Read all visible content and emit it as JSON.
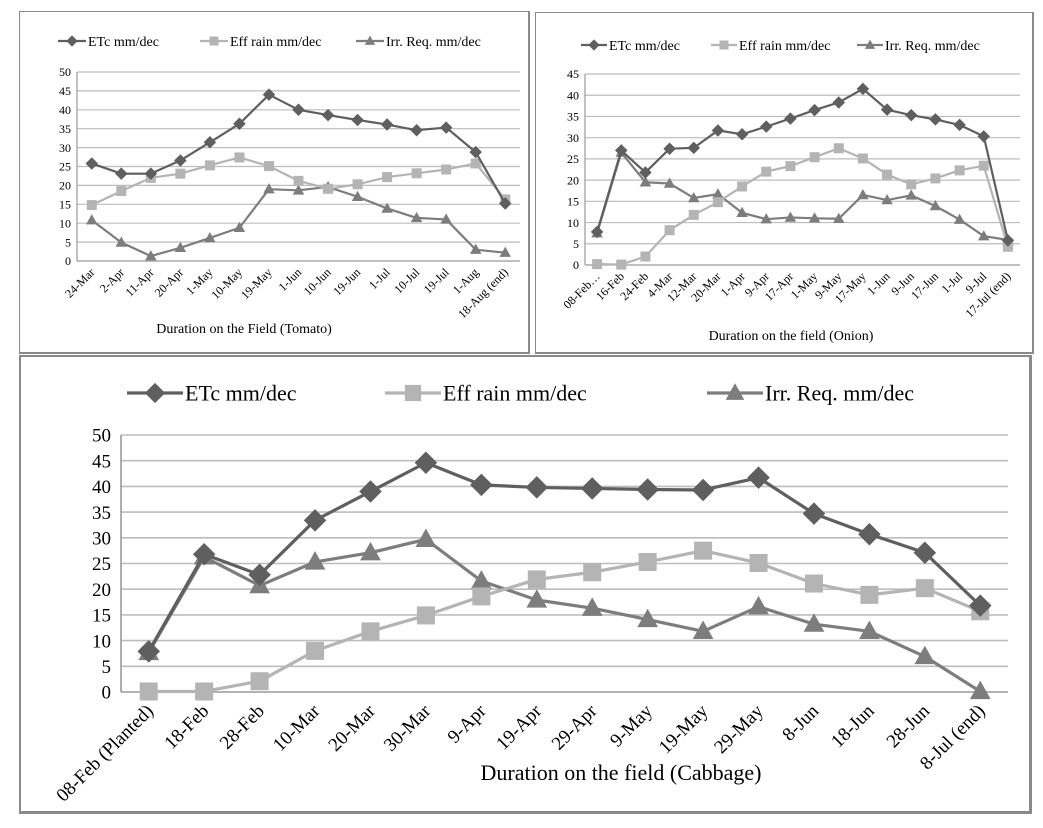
{
  "colors": {
    "etc": "#5f5f5f",
    "eff_rain": "#b4b4b4",
    "irr_req": "#7d7d7d",
    "grid": "#bdbdbd",
    "axis": "#9a9a9a"
  },
  "chart_data": [
    {
      "id": "tomato",
      "type": "line",
      "title": "",
      "xlabel": "Duration on the Field (Tomato)",
      "ylabel": "",
      "ylim": [
        0,
        50
      ],
      "ytick_step": 5,
      "grid": true,
      "legend_position": "top",
      "categories": [
        "24-Mar",
        "2-Apr",
        "11-Apr",
        "20-Apr",
        "1-May",
        "10-May",
        "19-May",
        "1-Jun",
        "10-Jun",
        "19-Jun",
        "1-Jul",
        "10-Jul",
        "19-Jul",
        "1-Aug",
        "18-Aug (end)"
      ],
      "series": [
        {
          "name": "ETc mm/dec",
          "marker": "diamond",
          "values": [
            25.8,
            23.1,
            23.1,
            26.6,
            31.4,
            36.3,
            44.0,
            40.0,
            38.6,
            37.3,
            36.1,
            34.6,
            35.3,
            28.8,
            15.2
          ]
        },
        {
          "name": "Eff rain mm/dec",
          "marker": "square",
          "values": [
            14.8,
            18.5,
            22.0,
            23.1,
            25.3,
            27.4,
            25.1,
            21.2,
            19.1,
            20.3,
            22.2,
            23.2,
            24.2,
            25.8,
            16.3
          ]
        },
        {
          "name": "Irr. Req. mm/dec",
          "marker": "triangle",
          "values": [
            10.8,
            4.9,
            1.3,
            3.5,
            6.1,
            8.8,
            19.0,
            18.7,
            19.6,
            17.0,
            13.9,
            11.4,
            11.0,
            3.0,
            2.2
          ]
        }
      ]
    },
    {
      "id": "onion",
      "type": "line",
      "title": "",
      "xlabel": "Duration on the field (Onion)",
      "ylabel": "",
      "ylim": [
        0,
        45
      ],
      "ytick_step": 5,
      "grid": true,
      "legend_position": "top",
      "categories": [
        "08-Feb…",
        "16-Feb",
        "24-Feb",
        "4-Mar",
        "12-Mar",
        "20-Mar",
        "1-Apr",
        "9-Apr",
        "17-Apr",
        "1-May",
        "9-May",
        "17-May",
        "1-Jun",
        "9-Jun",
        "17-Jun",
        "1-Jul",
        "9-Jul",
        "17-Jul (end)"
      ],
      "series": [
        {
          "name": "ETc mm/dec",
          "marker": "diamond",
          "values": [
            7.8,
            27.0,
            21.8,
            27.4,
            27.6,
            31.7,
            30.8,
            32.6,
            34.5,
            36.5,
            38.3,
            41.5,
            36.6,
            35.3,
            34.3,
            33.0,
            30.3,
            5.8
          ]
        },
        {
          "name": "Eff rain mm/dec",
          "marker": "square",
          "values": [
            0.2,
            0.1,
            2.0,
            8.2,
            11.8,
            14.8,
            18.5,
            22.0,
            23.3,
            25.4,
            27.5,
            25.1,
            21.3,
            19.0,
            20.4,
            22.3,
            23.4,
            4.3
          ]
        },
        {
          "name": "Irr. Req. mm/dec",
          "marker": "triangle",
          "values": [
            7.5,
            26.5,
            19.5,
            19.2,
            15.8,
            16.7,
            12.3,
            10.8,
            11.2,
            11.0,
            10.9,
            16.5,
            15.3,
            16.4,
            13.9,
            10.7,
            6.8,
            5.9
          ]
        }
      ]
    },
    {
      "id": "cabbage",
      "type": "line",
      "title": "",
      "xlabel": "Duration on the field (Cabbage)",
      "ylabel": "",
      "ylim": [
        0,
        50
      ],
      "ytick_step": 5,
      "grid": true,
      "legend_position": "top",
      "categories": [
        "08-Feb (Planted)",
        "18-Feb",
        "28-Feb",
        "10-Mar",
        "20-Mar",
        "30-Mar",
        "9-Apr",
        "19-Apr",
        "29-Apr",
        "9-May",
        "19-May",
        "29-May",
        "8-Jun",
        "18-Jun",
        "28-Jun",
        "8-Jul (end)"
      ],
      "series": [
        {
          "name": "ETc mm/dec",
          "marker": "diamond",
          "values": [
            7.9,
            26.8,
            22.8,
            33.4,
            39.0,
            44.6,
            40.3,
            39.8,
            39.6,
            39.4,
            39.3,
            41.7,
            34.7,
            30.7,
            27.1,
            16.8
          ]
        },
        {
          "name": "Eff rain mm/dec",
          "marker": "square",
          "values": [
            0.1,
            0.1,
            2.1,
            8.0,
            11.8,
            14.9,
            18.6,
            21.9,
            23.3,
            25.3,
            27.5,
            25.1,
            21.1,
            18.9,
            20.2,
            15.7
          ]
        },
        {
          "name": "Irr. Req. mm/dec",
          "marker": "triangle",
          "values": [
            7.7,
            26.3,
            20.7,
            25.3,
            27.1,
            29.7,
            21.6,
            17.9,
            16.3,
            14.1,
            11.8,
            16.6,
            13.2,
            11.8,
            6.9,
            0.1
          ]
        }
      ]
    }
  ]
}
